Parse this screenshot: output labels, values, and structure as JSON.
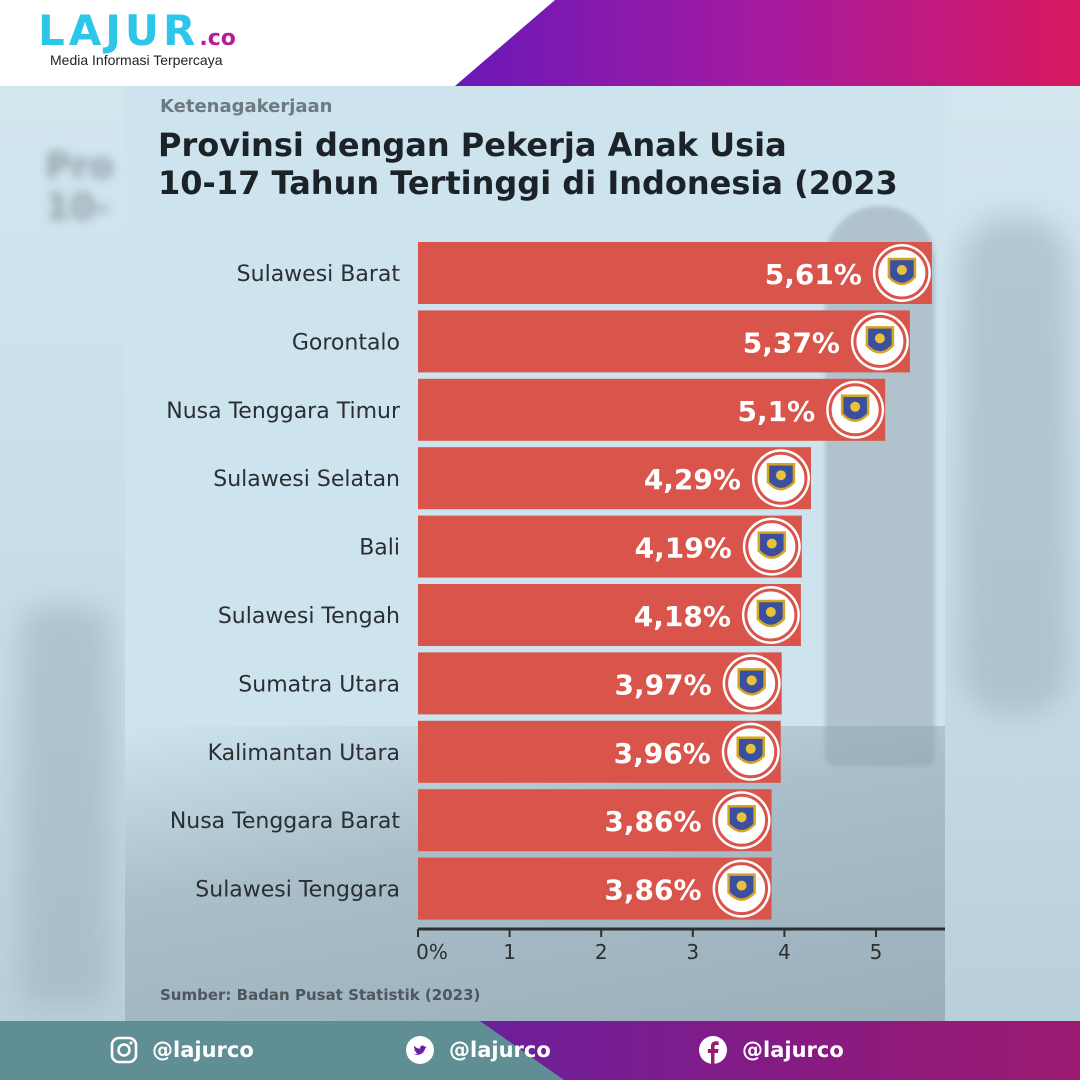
{
  "brand": {
    "logo_text": "LAJUR",
    "logo_tld": ".co",
    "tagline": "Media Informasi Terpercaya"
  },
  "card": {
    "category": "Ketenagakerjaan",
    "title_line1": "Provinsi dengan Pekerja Anak Usia",
    "title_line2": "10-17 Tahun Tertinggi di Indonesia (2023",
    "source": "Sumber: Badan Pusat Statistik (2023)"
  },
  "chart_data": {
    "type": "bar",
    "orientation": "horizontal",
    "title": "Provinsi dengan Pekerja Anak Usia 10-17 Tahun Tertinggi di Indonesia (2023)",
    "categories": [
      "Sulawesi Barat",
      "Gorontalo",
      "Nusa Tenggara Timur",
      "Sulawesi Selatan",
      "Bali",
      "Sulawesi Tengah",
      "Sumatra Utara",
      "Kalimantan Utara",
      "Nusa Tenggara Barat",
      "Sulawesi Tenggara"
    ],
    "values": [
      5.61,
      5.37,
      5.1,
      4.29,
      4.19,
      4.18,
      3.97,
      3.96,
      3.86,
      3.86
    ],
    "value_labels": [
      "5,61%",
      "5,37%",
      "5,1%",
      "4,29%",
      "4,19%",
      "4,18%",
      "3,97%",
      "3,96%",
      "3,86%",
      "3,86%"
    ],
    "xlim": [
      0,
      5.6
    ],
    "xticks": [
      0,
      1,
      2,
      3,
      4,
      5
    ],
    "xtick_labels": [
      "0%",
      "1",
      "2",
      "3",
      "4",
      "5"
    ],
    "bar_color": "#d9544a",
    "grid": false,
    "legend": "none"
  },
  "icons": [
    "province-emblem-icon"
  ],
  "footer": {
    "instagram": "@lajurco",
    "twitter": "@lajurco",
    "facebook": "@lajurco"
  },
  "colors": {
    "accent_purple": "#6a18b8",
    "accent_pink": "#d8185f",
    "logo_cyan": "#2bc6e8",
    "footer_teal": "#5f8e94"
  }
}
